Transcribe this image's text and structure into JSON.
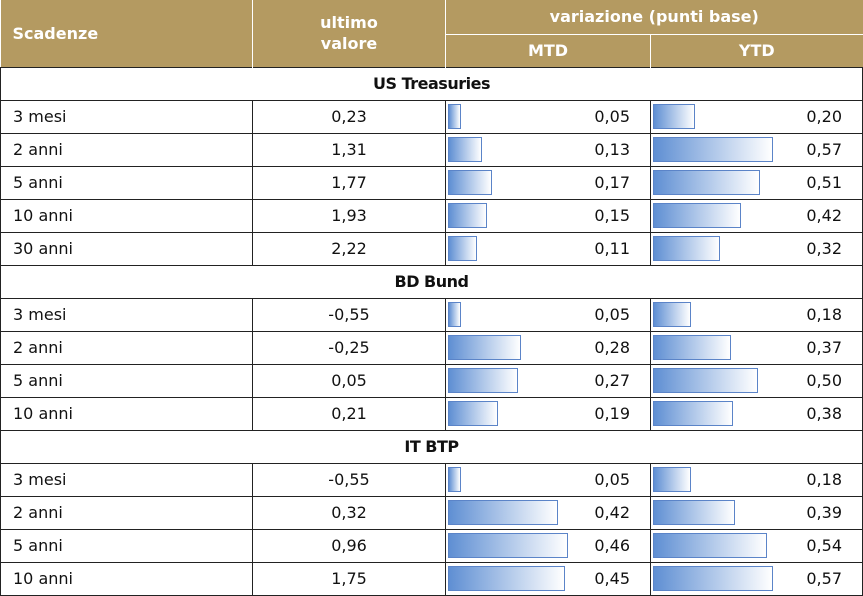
{
  "header": {
    "maturity": "Scadenze",
    "last_value": [
      "ultimo",
      "valore"
    ],
    "change": "variazione (punti base)",
    "mtd": "MTD",
    "ytd": "YTD"
  },
  "sections": [
    {
      "title": "US Treasuries",
      "rows": [
        {
          "label": "3 mesi",
          "last": "0,23",
          "mtd": 0.05,
          "mtd_label": "0,05",
          "ytd": 0.2,
          "ytd_label": "0,20"
        },
        {
          "label": "2 anni",
          "last": "1,31",
          "mtd": 0.13,
          "mtd_label": "0,13",
          "ytd": 0.57,
          "ytd_label": "0,57"
        },
        {
          "label": "5 anni",
          "last": "1,77",
          "mtd": 0.17,
          "mtd_label": "0,17",
          "ytd": 0.51,
          "ytd_label": "0,51"
        },
        {
          "label": "10 anni",
          "last": "1,93",
          "mtd": 0.15,
          "mtd_label": "0,15",
          "ytd": 0.42,
          "ytd_label": "0,42"
        },
        {
          "label": "30 anni",
          "last": "2,22",
          "mtd": 0.11,
          "mtd_label": "0,11",
          "ytd": 0.32,
          "ytd_label": "0,32"
        }
      ]
    },
    {
      "title": "BD Bund",
      "rows": [
        {
          "label": "3 mesi",
          "last": "-0,55",
          "mtd": 0.05,
          "mtd_label": "0,05",
          "ytd": 0.18,
          "ytd_label": "0,18"
        },
        {
          "label": "2 anni",
          "last": "-0,25",
          "mtd": 0.28,
          "mtd_label": "0,28",
          "ytd": 0.37,
          "ytd_label": "0,37"
        },
        {
          "label": "5 anni",
          "last": "0,05",
          "mtd": 0.27,
          "mtd_label": "0,27",
          "ytd": 0.5,
          "ytd_label": "0,50"
        },
        {
          "label": "10 anni",
          "last": "0,21",
          "mtd": 0.19,
          "mtd_label": "0,19",
          "ytd": 0.38,
          "ytd_label": "0,38"
        }
      ]
    },
    {
      "title": "IT BTP",
      "rows": [
        {
          "label": "3 mesi",
          "last": "-0,55",
          "mtd": 0.05,
          "mtd_label": "0,05",
          "ytd": 0.18,
          "ytd_label": "0,18"
        },
        {
          "label": "2 anni",
          "last": "0,32",
          "mtd": 0.42,
          "mtd_label": "0,42",
          "ytd": 0.39,
          "ytd_label": "0,39"
        },
        {
          "label": "5 anni",
          "last": "0,96",
          "mtd": 0.46,
          "mtd_label": "0,46",
          "ytd": 0.54,
          "ytd_label": "0,54"
        },
        {
          "label": "10 anni",
          "last": "1,75",
          "mtd": 0.45,
          "mtd_label": "0,45",
          "ytd": 0.57,
          "ytd_label": "0,57"
        }
      ]
    }
  ]
}
